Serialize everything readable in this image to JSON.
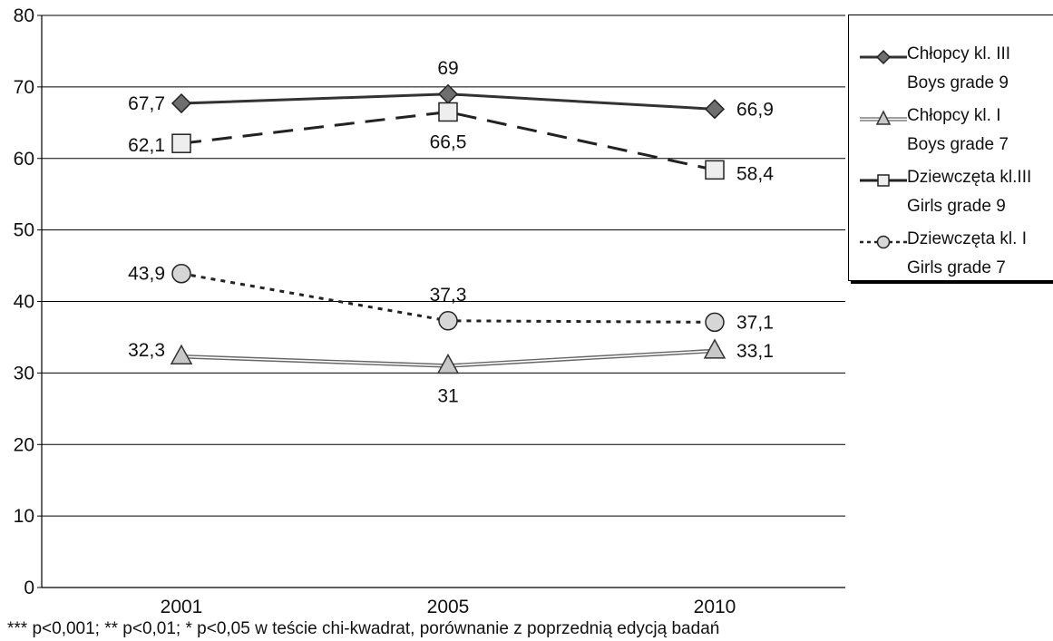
{
  "chart_data": {
    "type": "line",
    "categories": [
      "2001",
      "2005",
      "2010"
    ],
    "ylim": [
      0,
      80
    ],
    "yticks": [
      0,
      10,
      20,
      30,
      40,
      50,
      60,
      70,
      80
    ],
    "grid": true,
    "legend_position": "right",
    "series": [
      {
        "name": "Chłopcy kl. III",
        "name_en": "Boys grade 9",
        "values": [
          67.7,
          69,
          66.9
        ],
        "value_labels": [
          "67,7",
          "69",
          "66,9"
        ],
        "marker": "diamond",
        "line_style": "solid",
        "color": "#333333",
        "marker_fill": "#6e6e6e"
      },
      {
        "name": "Chłopcy kl. I",
        "name_en": "Boys grade 7",
        "values": [
          32.3,
          31,
          33.1
        ],
        "value_labels": [
          "32,3",
          "31",
          "33,1"
        ],
        "marker": "triangle",
        "line_style": "double",
        "color": "#555555",
        "marker_fill": "#c8c8c8"
      },
      {
        "name": "Dziewczęta kl.III",
        "name_en": "Girls grade 9",
        "values": [
          62.1,
          66.5,
          58.4
        ],
        "value_labels": [
          "62,1",
          "66,5",
          "58,4"
        ],
        "marker": "square",
        "line_style": "dashed",
        "color": "#222222",
        "marker_fill": "#eeeeee"
      },
      {
        "name": "Dziewczęta kl. I",
        "name_en": "Girls grade 7",
        "values": [
          43.9,
          37.3,
          37.1
        ],
        "value_labels": [
          "43,9",
          "37,3",
          "37,1"
        ],
        "marker": "circle",
        "line_style": "dotted",
        "color": "#222222",
        "marker_fill": "#d6d6d6"
      }
    ]
  },
  "footnote": "*** p<0,001;  ** p<0,01;  * p<0,05 w teście chi-kwadrat, porównanie z poprzednią edycją badań"
}
